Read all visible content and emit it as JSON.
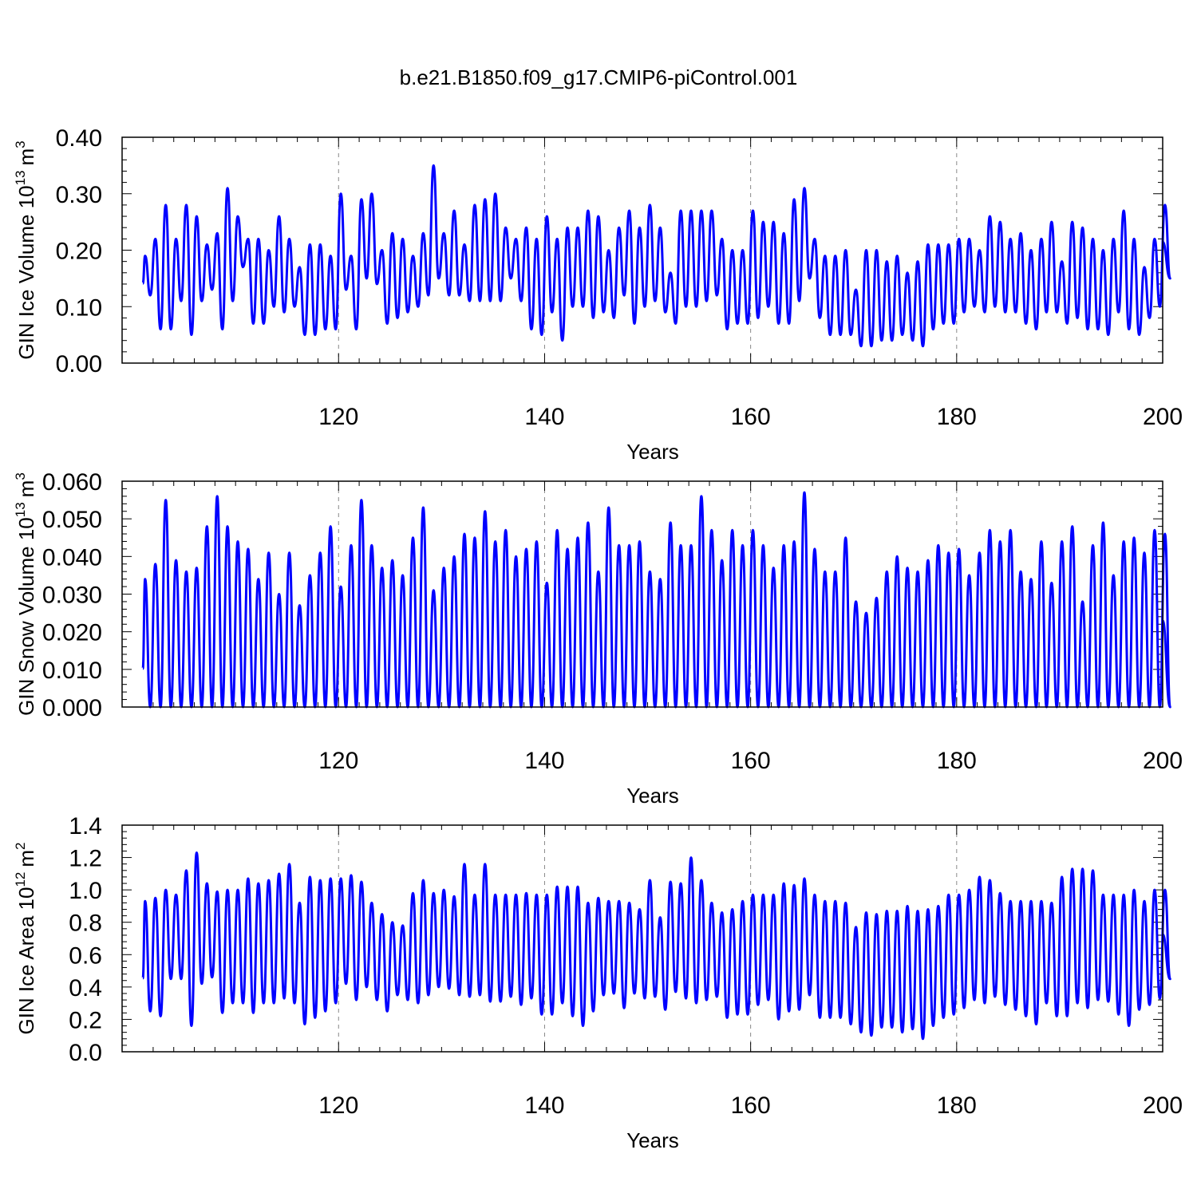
{
  "figure": {
    "title": "b.e21.B1850.f09_g17.CMIP6-piControl.001",
    "line_color": "#0000ff",
    "grid_color": "#888888"
  },
  "chart_data": [
    {
      "type": "line",
      "series_name": "GIN Ice Volume",
      "ylabel_main": "GIN Ice Volume 10",
      "ylabel_exp": "13",
      "ylabel_unit": "m",
      "ylabel_unit_exp": "3",
      "xlabel": "Years",
      "xlim": [
        101,
        200
      ],
      "ylim": [
        0,
        0.4
      ],
      "xticks": [
        "120",
        "140",
        "160",
        "180",
        "200"
      ],
      "xtick_values": [
        120,
        140,
        160,
        180,
        200
      ],
      "yticks": [
        "0.00",
        "0.10",
        "0.20",
        "0.30",
        "0.40"
      ],
      "ytick_values": [
        0,
        0.1,
        0.2,
        0.3,
        0.4
      ],
      "grid_x": [
        120,
        140,
        160,
        180
      ],
      "annual_max": [
        0.19,
        0.22,
        0.28,
        0.22,
        0.28,
        0.26,
        0.21,
        0.23,
        0.31,
        0.26,
        0.22,
        0.22,
        0.2,
        0.26,
        0.22,
        0.17,
        0.21,
        0.21,
        0.19,
        0.3,
        0.19,
        0.29,
        0.3,
        0.2,
        0.23,
        0.22,
        0.19,
        0.23,
        0.35,
        0.23,
        0.27,
        0.21,
        0.28,
        0.29,
        0.3,
        0.24,
        0.22,
        0.24,
        0.22,
        0.26,
        0.22,
        0.24,
        0.24,
        0.27,
        0.26,
        0.2,
        0.24,
        0.27,
        0.24,
        0.28,
        0.24,
        0.16,
        0.27,
        0.27,
        0.27,
        0.27,
        0.22,
        0.2,
        0.2,
        0.27,
        0.25,
        0.25,
        0.23,
        0.29,
        0.31,
        0.22,
        0.19,
        0.19,
        0.2,
        0.13,
        0.2,
        0.2,
        0.18,
        0.19,
        0.16,
        0.18,
        0.21,
        0.21,
        0.21,
        0.22,
        0.22,
        0.2,
        0.26,
        0.25,
        0.22,
        0.23,
        0.2,
        0.22,
        0.25,
        0.18,
        0.25,
        0.24,
        0.22,
        0.2,
        0.22,
        0.27,
        0.22,
        0.17,
        0.22,
        0.28
      ],
      "annual_min": [
        0.12,
        0.06,
        0.06,
        0.11,
        0.05,
        0.11,
        0.13,
        0.06,
        0.11,
        0.17,
        0.07,
        0.07,
        0.1,
        0.09,
        0.1,
        0.05,
        0.05,
        0.06,
        0.06,
        0.13,
        0.06,
        0.15,
        0.14,
        0.07,
        0.08,
        0.09,
        0.1,
        0.12,
        0.15,
        0.12,
        0.12,
        0.11,
        0.11,
        0.11,
        0.11,
        0.15,
        0.11,
        0.06,
        0.05,
        0.09,
        0.04,
        0.1,
        0.1,
        0.08,
        0.09,
        0.08,
        0.12,
        0.07,
        0.1,
        0.11,
        0.09,
        0.07,
        0.1,
        0.1,
        0.11,
        0.12,
        0.06,
        0.07,
        0.07,
        0.08,
        0.1,
        0.07,
        0.07,
        0.11,
        0.15,
        0.08,
        0.05,
        0.05,
        0.05,
        0.03,
        0.03,
        0.04,
        0.04,
        0.05,
        0.04,
        0.03,
        0.06,
        0.07,
        0.07,
        0.09,
        0.1,
        0.09,
        0.1,
        0.09,
        0.09,
        0.07,
        0.06,
        0.09,
        0.09,
        0.07,
        0.08,
        0.06,
        0.06,
        0.05,
        0.09,
        0.06,
        0.05,
        0.08,
        0.1,
        0.15
      ]
    },
    {
      "type": "line",
      "series_name": "GIN Snow Volume",
      "ylabel_main": "GIN Snow Volume 10",
      "ylabel_exp": "13",
      "ylabel_unit": "m",
      "ylabel_unit_exp": "3",
      "xlabel": "Years",
      "xlim": [
        101,
        200
      ],
      "ylim": [
        0,
        0.06
      ],
      "xticks": [
        "120",
        "140",
        "160",
        "180",
        "200"
      ],
      "xtick_values": [
        120,
        140,
        160,
        180,
        200
      ],
      "yticks": [
        "0.000",
        "0.010",
        "0.020",
        "0.030",
        "0.040",
        "0.050",
        "0.060"
      ],
      "ytick_values": [
        0,
        0.01,
        0.02,
        0.03,
        0.04,
        0.05,
        0.06
      ],
      "grid_x": [
        120,
        140,
        160,
        180
      ],
      "annual_max": [
        0.034,
        0.038,
        0.055,
        0.039,
        0.036,
        0.037,
        0.048,
        0.056,
        0.048,
        0.044,
        0.042,
        0.034,
        0.041,
        0.03,
        0.041,
        0.027,
        0.035,
        0.041,
        0.048,
        0.032,
        0.043,
        0.055,
        0.043,
        0.037,
        0.039,
        0.035,
        0.045,
        0.053,
        0.031,
        0.037,
        0.04,
        0.046,
        0.045,
        0.052,
        0.044,
        0.047,
        0.04,
        0.042,
        0.044,
        0.033,
        0.047,
        0.042,
        0.045,
        0.049,
        0.036,
        0.053,
        0.043,
        0.043,
        0.044,
        0.036,
        0.034,
        0.049,
        0.043,
        0.043,
        0.056,
        0.047,
        0.039,
        0.047,
        0.043,
        0.047,
        0.043,
        0.037,
        0.043,
        0.044,
        0.057,
        0.042,
        0.036,
        0.036,
        0.045,
        0.028,
        0.025,
        0.029,
        0.036,
        0.04,
        0.037,
        0.036,
        0.039,
        0.043,
        0.041,
        0.042,
        0.035,
        0.041,
        0.047,
        0.044,
        0.047,
        0.036,
        0.034,
        0.044,
        0.033,
        0.044,
        0.048,
        0.028,
        0.043,
        0.049,
        0.035,
        0.044,
        0.045,
        0.041,
        0.047,
        0.046
      ],
      "annual_min": [
        0.0,
        0.0,
        0.0,
        0.0,
        0.0,
        0.0,
        0.0,
        0.0,
        0.0,
        0.0,
        0.0,
        0.0,
        0.0,
        0.0,
        0.0,
        0.0,
        0.0,
        0.0,
        0.0,
        0.0,
        0.0,
        0.0,
        0.0,
        0.0,
        0.0,
        0.0,
        0.0,
        0.0,
        0.0,
        0.0,
        0.0,
        0.0,
        0.0,
        0.0,
        0.0,
        0.0,
        0.0,
        0.0,
        0.0,
        0.0,
        0.0,
        0.0,
        0.0,
        0.0,
        0.0,
        0.0,
        0.0,
        0.0,
        0.0,
        0.0,
        0.0,
        0.0,
        0.0,
        0.0,
        0.0,
        0.0,
        0.0,
        0.0,
        0.0,
        0.0,
        0.0,
        0.0,
        0.0,
        0.0,
        0.0,
        0.0,
        0.0,
        0.0,
        0.0,
        0.0,
        0.0,
        0.0,
        0.0,
        0.0,
        0.0,
        0.0,
        0.0,
        0.0,
        0.0,
        0.0,
        0.0,
        0.0,
        0.0,
        0.0,
        0.0,
        0.0,
        0.0,
        0.0,
        0.0,
        0.0,
        0.0,
        0.0,
        0.0,
        0.0,
        0.0,
        0.0,
        0.0,
        0.0,
        0.0,
        0.0
      ]
    },
    {
      "type": "line",
      "series_name": "GIN Ice Area",
      "ylabel_main": "GIN Ice Area 10",
      "ylabel_exp": "12",
      "ylabel_unit": "m",
      "ylabel_unit_exp": "2",
      "xlabel": "Years",
      "xlim": [
        101,
        200
      ],
      "ylim": [
        0,
        1.4
      ],
      "xticks": [
        "120",
        "140",
        "160",
        "180",
        "200"
      ],
      "xtick_values": [
        120,
        140,
        160,
        180,
        200
      ],
      "yticks": [
        "0.0",
        "0.2",
        "0.4",
        "0.6",
        "0.8",
        "1.0",
        "1.2",
        "1.4"
      ],
      "ytick_values": [
        0,
        0.2,
        0.4,
        0.6,
        0.8,
        1.0,
        1.2,
        1.4
      ],
      "grid_x": [
        120,
        140,
        160,
        180
      ],
      "annual_max": [
        0.93,
        0.95,
        1.0,
        0.97,
        1.12,
        1.23,
        1.04,
        0.99,
        1.0,
        1.0,
        1.07,
        1.04,
        1.06,
        1.1,
        1.16,
        0.92,
        1.08,
        1.06,
        1.07,
        1.07,
        1.09,
        1.05,
        0.92,
        0.85,
        0.8,
        0.78,
        0.98,
        1.06,
        0.98,
        1.0,
        0.96,
        1.16,
        0.97,
        1.16,
        0.97,
        0.97,
        0.97,
        0.98,
        0.97,
        0.97,
        1.02,
        1.02,
        1.02,
        0.92,
        0.95,
        0.93,
        0.93,
        0.92,
        0.88,
        1.06,
        0.83,
        1.05,
        1.04,
        1.2,
        1.06,
        0.92,
        0.86,
        0.88,
        0.93,
        0.97,
        0.97,
        0.97,
        1.04,
        1.03,
        1.07,
        0.97,
        0.93,
        0.93,
        0.92,
        0.77,
        0.86,
        0.85,
        0.87,
        0.87,
        0.9,
        0.87,
        0.88,
        0.9,
        0.97,
        0.97,
        1.0,
        1.08,
        1.06,
        0.98,
        0.93,
        0.93,
        0.93,
        0.93,
        0.92,
        1.08,
        1.13,
        1.13,
        1.12,
        0.97,
        0.97,
        0.97,
        1.0,
        0.93,
        1.0,
        1.0
      ],
      "annual_min": [
        0.25,
        0.22,
        0.45,
        0.45,
        0.16,
        0.42,
        0.46,
        0.24,
        0.3,
        0.3,
        0.24,
        0.3,
        0.3,
        0.33,
        0.3,
        0.17,
        0.21,
        0.25,
        0.3,
        0.42,
        0.32,
        0.4,
        0.32,
        0.25,
        0.35,
        0.32,
        0.3,
        0.35,
        0.4,
        0.39,
        0.35,
        0.34,
        0.35,
        0.31,
        0.31,
        0.34,
        0.29,
        0.33,
        0.23,
        0.23,
        0.3,
        0.22,
        0.16,
        0.25,
        0.35,
        0.36,
        0.27,
        0.36,
        0.33,
        0.34,
        0.26,
        0.37,
        0.33,
        0.3,
        0.32,
        0.34,
        0.21,
        0.23,
        0.23,
        0.29,
        0.32,
        0.2,
        0.25,
        0.26,
        0.35,
        0.21,
        0.21,
        0.21,
        0.17,
        0.12,
        0.1,
        0.15,
        0.15,
        0.12,
        0.14,
        0.08,
        0.16,
        0.21,
        0.23,
        0.27,
        0.32,
        0.3,
        0.34,
        0.29,
        0.26,
        0.22,
        0.17,
        0.3,
        0.22,
        0.22,
        0.3,
        0.27,
        0.32,
        0.31,
        0.23,
        0.16,
        0.26,
        0.29,
        0.33,
        0.45
      ]
    }
  ]
}
